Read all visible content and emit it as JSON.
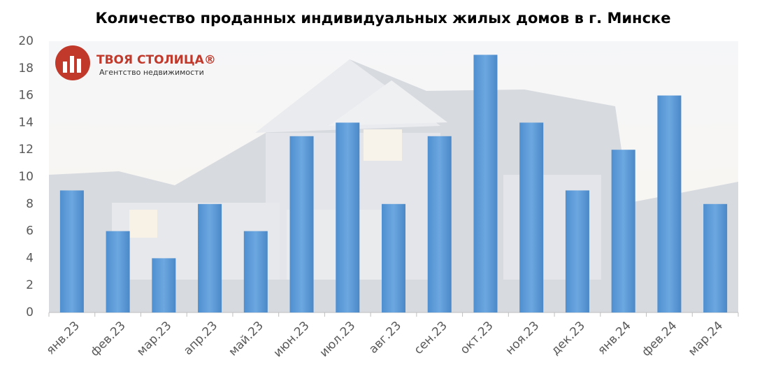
{
  "chart_data": {
    "type": "bar",
    "title": "Количество проданных индивидуальных жилых домов в г. Минске",
    "annotations": [
      "ТВОЯ СТОЛИЦА®",
      "Агентство недвижимости"
    ],
    "categories": [
      "янв.23",
      "фев.23",
      "мар.23",
      "апр.23",
      "май.23",
      "июн.23",
      "июл.23",
      "авг.23",
      "сен.23",
      "окт.23",
      "ноя.23",
      "дек.23",
      "янв.24",
      "фев.24",
      "мар.24"
    ],
    "values": [
      9,
      6,
      4,
      8,
      6,
      13,
      14,
      8,
      13,
      19,
      14,
      9,
      12,
      16,
      8
    ],
    "color": "#5b9bd5",
    "ylim": [
      0,
      20
    ],
    "yticks": [
      0,
      2,
      4,
      6,
      8,
      10,
      12,
      14,
      16,
      18,
      20
    ],
    "grid": false
  }
}
